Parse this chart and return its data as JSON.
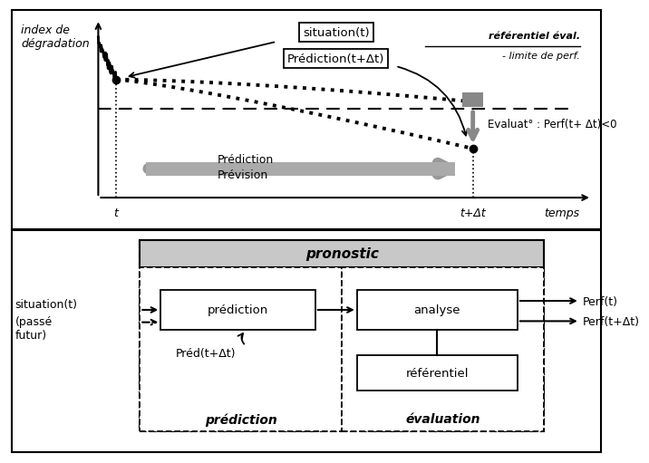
{
  "bg_color": "#ffffff",
  "top_panel": {
    "ylabel": "index de\ndégradation",
    "xlabel": "temps",
    "t_label": "t",
    "t_delta_label": "t+Δt",
    "situation_label": "situation(t)",
    "prediction_label": "Prédiction(t+Δt)",
    "ref_label1": "référentiel éval.",
    "ref_label2": "- limite de perf.",
    "evaluat_label": "Evaluat° : Perf(t+ Δt)<0",
    "prediction_arrow_label1": "Prédiction",
    "prediction_arrow_label2": "Prévision"
  },
  "bottom_panel": {
    "pronostic_label": "pronostic",
    "situation_label": "situation(t)",
    "passe_futur_label": "(passé\nfutur)",
    "prediction_box_label": "prédiction",
    "analyse_box_label": "analyse",
    "referentiel_box_label": "référentiel",
    "pred_delta_label": "Préd(t+Δt)",
    "perf_t_label": "Perf(t)",
    "perf_delta_label": "Perf(t+Δt)",
    "prediction_section_label": "prédiction",
    "evaluation_section_label": "évaluation"
  }
}
